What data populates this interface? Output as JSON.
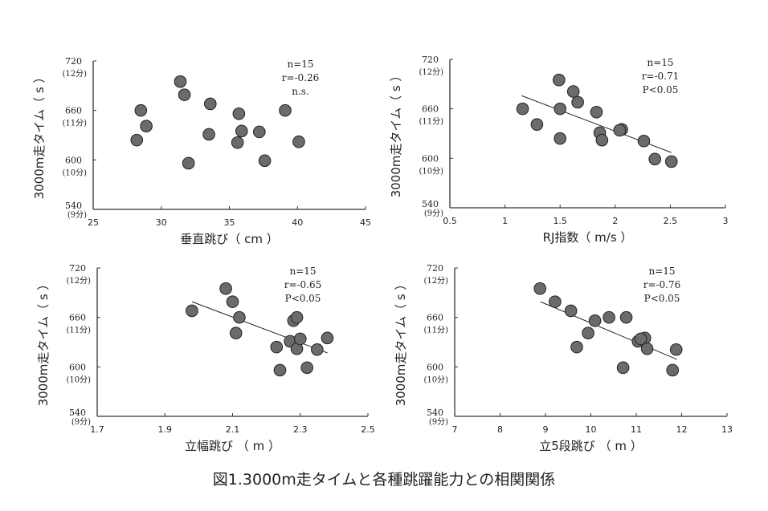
{
  "caption": "図1.3000m走タイムと各種跳躍能力との相関関係",
  "colors": {
    "marker_fill": "#6b6b6b",
    "marker_stroke": "#222222",
    "axis": "#333333"
  },
  "chart_data": [
    {
      "type": "scatter",
      "xlabel": "垂直跳び（ cm ）",
      "ylabel": "3000m走タイム（ s ）",
      "xlim": [
        25,
        45
      ],
      "xticks": [
        "25",
        "30",
        "35",
        "40",
        "45"
      ],
      "ylim": [
        540,
        720
      ],
      "yticks": [
        {
          "value": "720",
          "sub": "(12分)"
        },
        {
          "value": "660",
          "sub": "(11分)"
        },
        {
          "value": "600",
          "sub": "(10分)"
        },
        {
          "value": "540",
          "sub": "(9分)"
        }
      ],
      "stats": [
        "n=15",
        "r=-0.26",
        "n.s."
      ],
      "trendline": null,
      "points": [
        [
          31.4,
          695
        ],
        [
          31.7,
          679
        ],
        [
          28.5,
          660
        ],
        [
          28.9,
          641
        ],
        [
          28.2,
          624
        ],
        [
          33.6,
          668
        ],
        [
          33.5,
          631
        ],
        [
          32.0,
          596
        ],
        [
          35.7,
          656
        ],
        [
          35.9,
          635
        ],
        [
          35.6,
          621
        ],
        [
          37.2,
          634
        ],
        [
          37.6,
          599
        ],
        [
          39.1,
          660
        ],
        [
          40.1,
          622
        ]
      ]
    },
    {
      "type": "scatter",
      "xlabel": "RJ指数（ m/s ）",
      "ylabel": "3000m走タイム（ s ）",
      "xlim": [
        0.5,
        3
      ],
      "xticks": [
        "0.5",
        "1",
        "1.5",
        "2",
        "2.5",
        "3"
      ],
      "ylim": [
        540,
        720
      ],
      "yticks": [
        {
          "value": "720",
          "sub": "(12分)"
        },
        {
          "value": "660",
          "sub": "(11分)"
        },
        {
          "value": "600",
          "sub": "(10分)"
        },
        {
          "value": "540",
          "sub": "(9分)"
        }
      ],
      "stats": [
        "n=15",
        "r=-0.71",
        "P<0.05"
      ],
      "trendline": [
        [
          1.15,
          676
        ],
        [
          2.51,
          607
        ]
      ],
      "points": [
        [
          1.49,
          695
        ],
        [
          1.62,
          681
        ],
        [
          1.66,
          668
        ],
        [
          1.16,
          660
        ],
        [
          1.5,
          660
        ],
        [
          1.29,
          641
        ],
        [
          1.5,
          624
        ],
        [
          1.83,
          656
        ],
        [
          1.86,
          631
        ],
        [
          1.88,
          622
        ],
        [
          2.06,
          635
        ],
        [
          2.04,
          634
        ],
        [
          2.26,
          621
        ],
        [
          2.36,
          599
        ],
        [
          2.51,
          596
        ]
      ]
    },
    {
      "type": "scatter",
      "xlabel": "立幅跳び （ m ）",
      "ylabel": "3000m走タイム（ s ）",
      "xlim": [
        1.7,
        2.5
      ],
      "xticks": [
        "1.7",
        "1.9",
        "2.1",
        "2.3",
        "2.5"
      ],
      "ylim": [
        540,
        720
      ],
      "yticks": [
        {
          "value": "720",
          "sub": "(12分)"
        },
        {
          "value": "660",
          "sub": "(11分)"
        },
        {
          "value": "600",
          "sub": "(10分)"
        },
        {
          "value": "540",
          "sub": "(9分)"
        }
      ],
      "stats": [
        "n=15",
        "r=-0.65",
        "P<0.05"
      ],
      "trendline": [
        [
          1.98,
          679
        ],
        [
          2.38,
          617
        ]
      ],
      "points": [
        [
          2.08,
          695
        ],
        [
          2.1,
          679
        ],
        [
          1.98,
          668
        ],
        [
          2.12,
          660
        ],
        [
          2.11,
          641
        ],
        [
          2.23,
          624
        ],
        [
          2.24,
          596
        ],
        [
          2.27,
          631
        ],
        [
          2.29,
          622
        ],
        [
          2.3,
          634
        ],
        [
          2.28,
          656
        ],
        [
          2.29,
          660
        ],
        [
          2.32,
          599
        ],
        [
          2.35,
          621
        ],
        [
          2.38,
          635
        ]
      ]
    },
    {
      "type": "scatter",
      "xlabel": "立5段跳び （ m ）",
      "ylabel": "3000m走タイム（ s ）",
      "xlim": [
        7,
        13
      ],
      "xticks": [
        "7",
        "8",
        "9",
        "10",
        "11",
        "12",
        "13"
      ],
      "ylim": [
        540,
        720
      ],
      "yticks": [
        {
          "value": "720",
          "sub": "(12分)"
        },
        {
          "value": "660",
          "sub": "(11分)"
        },
        {
          "value": "600",
          "sub": "(10分)"
        },
        {
          "value": "540",
          "sub": "(9分)"
        }
      ],
      "stats": [
        "n=15",
        "r=-0.76",
        "P<0.05"
      ],
      "trendline": [
        [
          8.89,
          679
        ],
        [
          11.9,
          609
        ]
      ],
      "points": [
        [
          8.88,
          695
        ],
        [
          9.21,
          679
        ],
        [
          9.56,
          668
        ],
        [
          10.09,
          656
        ],
        [
          10.4,
          660
        ],
        [
          10.78,
          660
        ],
        [
          9.94,
          641
        ],
        [
          9.69,
          624
        ],
        [
          10.71,
          599
        ],
        [
          11.04,
          631
        ],
        [
          11.19,
          635
        ],
        [
          11.1,
          634
        ],
        [
          11.24,
          622
        ],
        [
          11.8,
          596
        ],
        [
          11.88,
          621
        ]
      ]
    }
  ]
}
